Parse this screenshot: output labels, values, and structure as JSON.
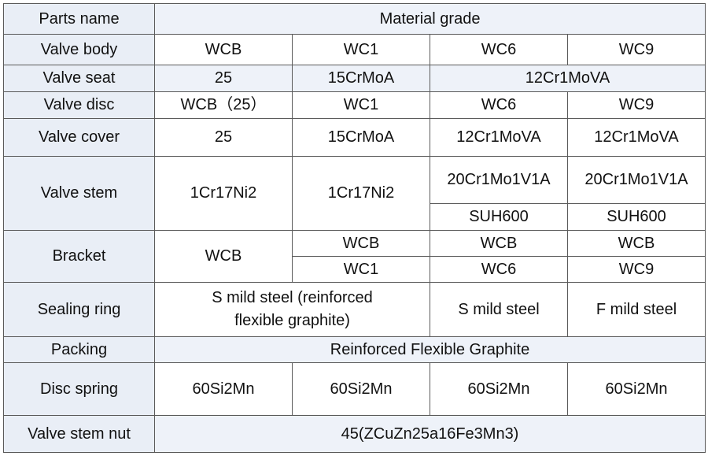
{
  "header": {
    "parts_name": "Parts name",
    "material_grade": "Material grade"
  },
  "rows": [
    {
      "part": "Valve body",
      "grades": [
        "WCB",
        "WC1",
        "WC6",
        "WC9"
      ]
    },
    {
      "part": "Valve seat",
      "grades": [
        "25",
        "15CrMoA",
        "12Cr1MoVA"
      ]
    },
    {
      "part": "Valve disc",
      "grades": [
        "WCB（25）",
        "WC1",
        "WC6",
        "WC9"
      ]
    },
    {
      "part": "Valve cover",
      "grades": [
        "25",
        "15CrMoA",
        "12Cr1MoVA",
        "12Cr1MoVA"
      ]
    },
    {
      "part": "Valve stem",
      "grades": [
        "1Cr17Ni2",
        "1Cr17Ni2",
        "20Cr1Mo1V1A",
        "20Cr1Mo1V1A",
        "SUH600",
        "SUH600"
      ]
    },
    {
      "part": "Bracket",
      "grades": [
        "WCB",
        "WCB",
        "WCB",
        "WCB",
        "WC1",
        "WC6",
        "WC9"
      ]
    },
    {
      "part": "Sealing ring",
      "grades": [
        "S mild steel (reinforced flexible graphite)",
        "S mild steel",
        "F mild steel"
      ]
    },
    {
      "part": "Packing",
      "grades": [
        "Reinforced Flexible Graphite"
      ]
    },
    {
      "part": "Disc spring",
      "grades": [
        "60Si2Mn",
        "60Si2Mn",
        "60Si2Mn",
        "60Si2Mn"
      ]
    },
    {
      "part": "Valve stem nut",
      "grades": [
        "45(ZCuZn25a16Fe3Mn3)"
      ]
    }
  ]
}
